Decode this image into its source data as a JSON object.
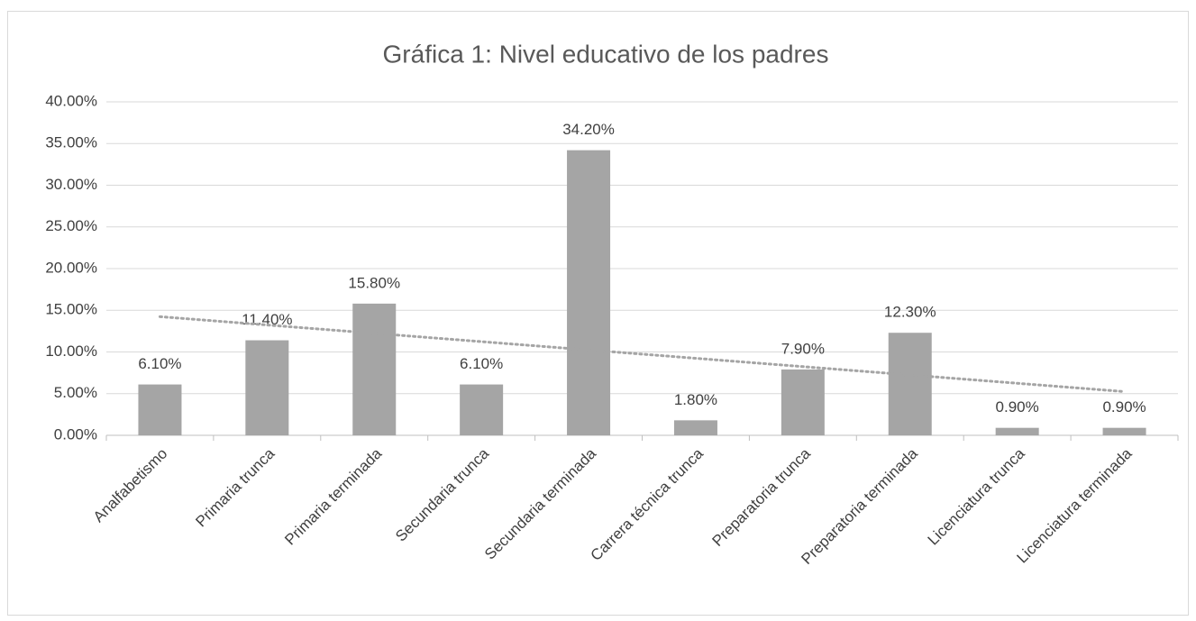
{
  "chart_data": {
    "type": "bar",
    "title": "Gráfica 1: Nivel educativo de los padres",
    "categories": [
      "Analfabetismo",
      "Primaria trunca",
      "Primaria terminada",
      "Secundaria trunca",
      "Secundaria terminada",
      "Carrera técnica trunca",
      "Preparatoria trunca",
      "Preparatoria terminada",
      "Licenciatura trunca",
      "Licenciatura terminada"
    ],
    "values": [
      6.1,
      11.4,
      15.8,
      6.1,
      34.2,
      1.8,
      7.9,
      12.3,
      0.9,
      0.9
    ],
    "value_labels": [
      "6.10%",
      "11.40%",
      "15.80%",
      "6.10%",
      "34.20%",
      "1.80%",
      "7.90%",
      "12.30%",
      "0.90%",
      "0.90%"
    ],
    "color": "#a5a5a5",
    "ylim": [
      0,
      40
    ],
    "yticks": [
      {
        "value": 0,
        "label": "0.00%"
      },
      {
        "value": 5,
        "label": "5.00%"
      },
      {
        "value": 10,
        "label": "10.00%"
      },
      {
        "value": 15,
        "label": "15.00%"
      },
      {
        "value": 20,
        "label": "20.00%"
      },
      {
        "value": 25,
        "label": "25.00%"
      },
      {
        "value": 30,
        "label": "30.00%"
      },
      {
        "value": 35,
        "label": "35.00%"
      },
      {
        "value": 40,
        "label": "40.00%"
      }
    ],
    "grid": true,
    "trendline": "linear"
  }
}
